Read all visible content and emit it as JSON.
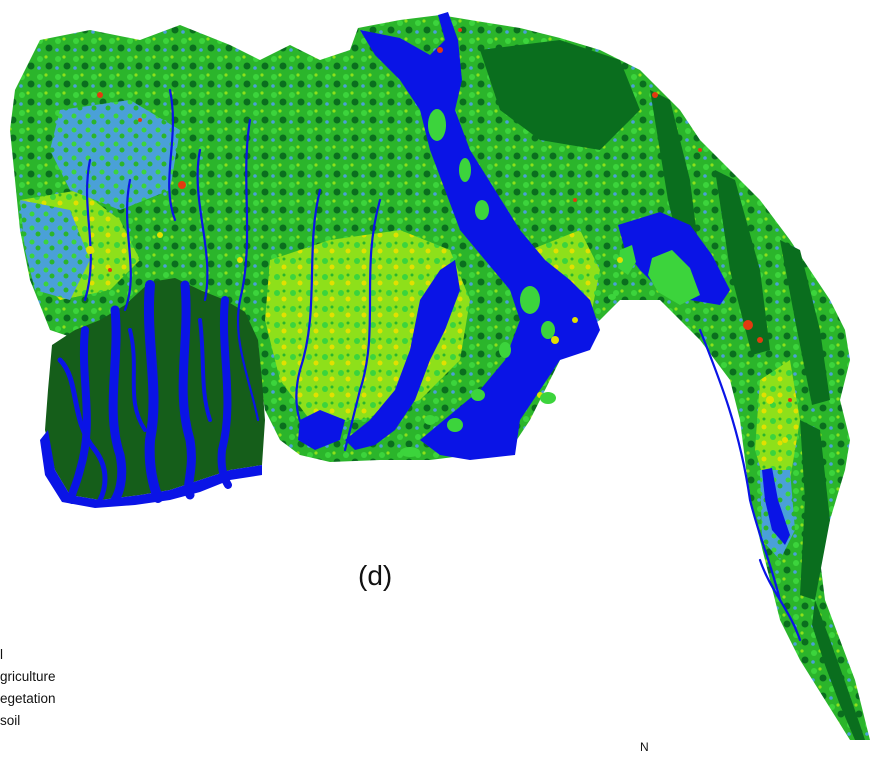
{
  "map": {
    "panel_label": "(d)",
    "colors": {
      "dense_vegetation": "#0a6e1e",
      "mangrove": "#155e1a",
      "vegetation": "#2bb52b",
      "agriculture": "#8ee01a",
      "bright_green": "#3cd43c",
      "yellow": "#e2e000",
      "red": "#e23a10",
      "light_blue": "#4aa0d8",
      "water": "#0a14e6",
      "background": "#ffffff"
    }
  },
  "legend": {
    "title": "l",
    "items": [
      {
        "label": "griculture"
      },
      {
        "label": "egetation"
      },
      {
        "label": "soil"
      }
    ]
  },
  "north_arrow": {
    "label": "N"
  }
}
